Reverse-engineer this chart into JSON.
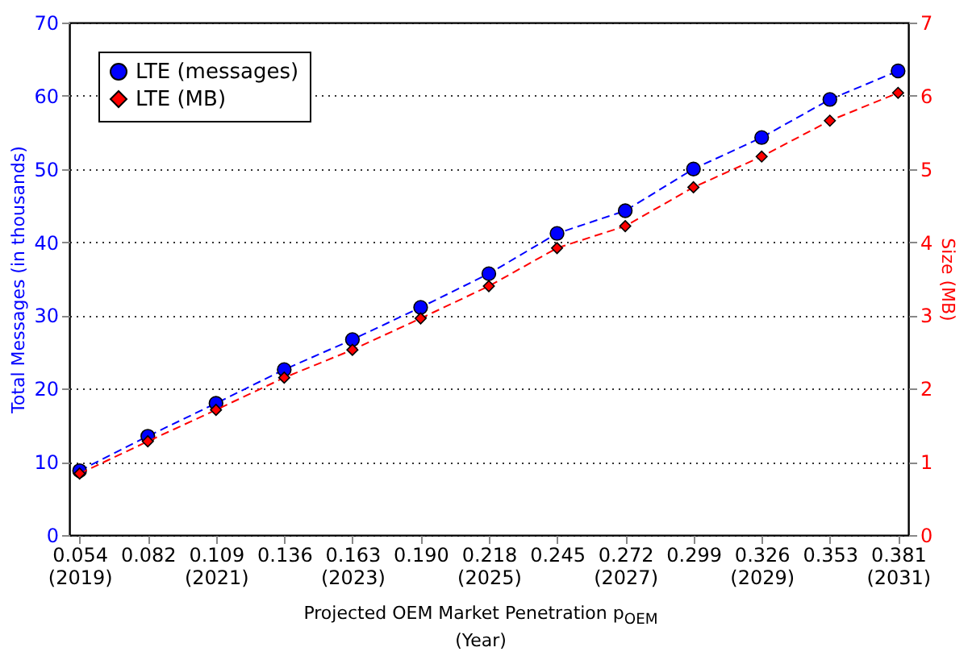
{
  "chart_data": {
    "type": "line",
    "xlabel": "Projected OEM Market Penetration p$_{OEM}$\n(Year)",
    "ylabel": "Total Messages (in thousands)",
    "y2label": "Size (MB)",
    "categories": [
      "0.054\n(2019)",
      "0.082",
      "0.109\n(2021)",
      "0.136",
      "0.163\n(2023)",
      "0.190",
      "0.218\n(2025)",
      "0.245",
      "0.272\n(2027)",
      "0.299",
      "0.326\n(2029)",
      "0.353",
      "0.381\n(2031)"
    ],
    "series": [
      {
        "name": "LTE (messages)",
        "color": "#0000ff",
        "marker": "circle",
        "values": [
          8.8,
          13.5,
          18.0,
          22.6,
          26.7,
          31.1,
          35.7,
          41.2,
          44.3,
          50.0,
          54.3,
          59.5,
          63.4
        ]
      },
      {
        "name": "LTE (MB)",
        "color": "#ff0000",
        "marker": "diamond",
        "axis": "y2",
        "values": [
          0.84,
          1.28,
          1.71,
          2.15,
          2.53,
          2.96,
          3.4,
          3.92,
          4.22,
          4.75,
          5.17,
          5.66,
          6.04
        ]
      }
    ],
    "ylim": [
      0,
      70
    ],
    "yticks": [
      0,
      10,
      20,
      30,
      40,
      50,
      60,
      70
    ],
    "y2lim": [
      0,
      7
    ],
    "y2ticks": [
      0,
      1,
      2,
      3,
      4,
      5,
      6,
      7
    ],
    "grid": "y",
    "legend": "top left",
    "line_style": "dashed"
  }
}
